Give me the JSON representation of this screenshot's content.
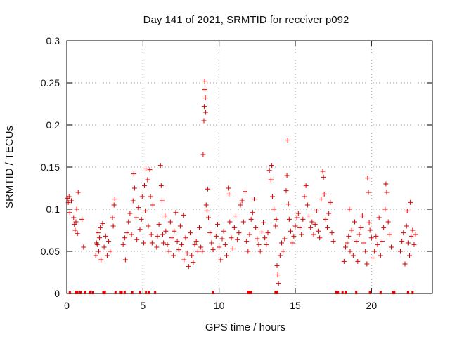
{
  "chart_data": {
    "type": "scatter",
    "title": "Day 141 of 2021, SRMTID for receiver p092",
    "xlabel": "GPS time / hours",
    "ylabel": "SRMTID / TECUs",
    "xlim": [
      0,
      24
    ],
    "ylim": [
      0,
      0.3
    ],
    "grid": true,
    "marker": "+",
    "color": "#e00000",
    "x_ticks": [
      0,
      5,
      10,
      15,
      20
    ],
    "x_tick_labels": [
      "0",
      "5",
      "10",
      "15",
      "20"
    ],
    "y_ticks": [
      0,
      0.05,
      0.1,
      0.15,
      0.2,
      0.25,
      0.3
    ],
    "y_tick_labels": [
      "0",
      "0.05",
      "0.1",
      "0.15",
      "0.2",
      "0.25",
      "0.3"
    ],
    "points": [
      [
        0.05,
        0.113
      ],
      [
        0.1,
        0.108
      ],
      [
        0.15,
        0.115
      ],
      [
        0.2,
        0.096
      ],
      [
        0.3,
        0.11
      ],
      [
        0.45,
        0.09
      ],
      [
        0.5,
        0.082
      ],
      [
        0.55,
        0.075
      ],
      [
        0.6,
        0.085
      ],
      [
        0.65,
        0.1
      ],
      [
        0.7,
        0.071
      ],
      [
        0.75,
        0.12
      ],
      [
        1.0,
        0.088
      ],
      [
        1.1,
        0.055
      ],
      [
        1.9,
        0.045
      ],
      [
        1.95,
        0.06
      ],
      [
        2.0,
        0.058
      ],
      [
        2.05,
        0.072
      ],
      [
        2.1,
        0.05
      ],
      [
        2.15,
        0.066
      ],
      [
        2.2,
        0.078
      ],
      [
        2.25,
        0.04
      ],
      [
        2.35,
        0.083
      ],
      [
        2.45,
        0.055
      ],
      [
        2.55,
        0.068
      ],
      [
        2.65,
        0.045
      ],
      [
        2.75,
        0.062
      ],
      [
        2.85,
        0.05
      ],
      [
        3.0,
        0.09
      ],
      [
        3.05,
        0.08
      ],
      [
        3.1,
        0.105
      ],
      [
        3.15,
        0.112
      ],
      [
        3.7,
        0.058
      ],
      [
        3.8,
        0.066
      ],
      [
        3.85,
        0.04
      ],
      [
        3.95,
        0.072
      ],
      [
        4.05,
        0.085
      ],
      [
        4.15,
        0.095
      ],
      [
        4.25,
        0.07
      ],
      [
        4.35,
        0.11
      ],
      [
        4.4,
        0.142
      ],
      [
        4.45,
        0.125
      ],
      [
        4.55,
        0.09
      ],
      [
        4.6,
        0.064
      ],
      [
        4.7,
        0.102
      ],
      [
        4.8,
        0.076
      ],
      [
        4.9,
        0.088
      ],
      [
        4.95,
        0.115
      ],
      [
        5.05,
        0.06
      ],
      [
        5.1,
        0.128
      ],
      [
        5.15,
        0.098
      ],
      [
        5.2,
        0.148
      ],
      [
        5.3,
        0.135
      ],
      [
        5.35,
        0.08
      ],
      [
        5.45,
        0.147
      ],
      [
        5.5,
        0.115
      ],
      [
        5.55,
        0.07
      ],
      [
        5.6,
        0.06
      ],
      [
        5.65,
        0.105
      ],
      [
        5.9,
        0.055
      ],
      [
        5.95,
        0.068
      ],
      [
        6.05,
        0.082
      ],
      [
        6.15,
        0.152
      ],
      [
        6.2,
        0.128
      ],
      [
        6.25,
        0.11
      ],
      [
        6.3,
        0.07
      ],
      [
        6.35,
        0.06
      ],
      [
        6.45,
        0.092
      ],
      [
        6.5,
        0.074
      ],
      [
        6.6,
        0.058
      ],
      [
        6.7,
        0.05
      ],
      [
        6.8,
        0.085
      ],
      [
        6.9,
        0.066
      ],
      [
        7.0,
        0.045
      ],
      [
        7.05,
        0.074
      ],
      [
        7.15,
        0.096
      ],
      [
        7.25,
        0.062
      ],
      [
        7.35,
        0.052
      ],
      [
        7.45,
        0.08
      ],
      [
        7.55,
        0.058
      ],
      [
        7.65,
        0.093
      ],
      [
        7.7,
        0.04
      ],
      [
        7.8,
        0.066
      ],
      [
        7.9,
        0.048
      ],
      [
        8.0,
        0.032
      ],
      [
        8.1,
        0.072
      ],
      [
        8.2,
        0.045
      ],
      [
        8.3,
        0.037
      ],
      [
        8.4,
        0.058
      ],
      [
        8.5,
        0.062
      ],
      [
        8.6,
        0.05
      ],
      [
        8.7,
        0.078
      ],
      [
        8.8,
        0.055
      ],
      [
        8.9,
        0.05
      ],
      [
        8.95,
        0.165
      ],
      [
        9.0,
        0.205
      ],
      [
        9.02,
        0.222
      ],
      [
        9.05,
        0.252
      ],
      [
        9.07,
        0.242
      ],
      [
        9.1,
        0.232
      ],
      [
        9.12,
        0.215
      ],
      [
        9.15,
        0.105
      ],
      [
        9.2,
        0.098
      ],
      [
        9.25,
        0.124
      ],
      [
        9.3,
        0.09
      ],
      [
        9.4,
        0.072
      ],
      [
        9.5,
        0.06
      ],
      [
        9.6,
        0.052
      ],
      [
        9.8,
        0.068
      ],
      [
        9.9,
        0.082
      ],
      [
        10.0,
        0.055
      ],
      [
        10.1,
        0.04
      ],
      [
        10.2,
        0.065
      ],
      [
        10.3,
        0.074
      ],
      [
        10.4,
        0.058
      ],
      [
        10.5,
        0.045
      ],
      [
        10.6,
        0.125
      ],
      [
        10.65,
        0.118
      ],
      [
        10.7,
        0.085
      ],
      [
        10.8,
        0.066
      ],
      [
        10.9,
        0.053
      ],
      [
        11.0,
        0.078
      ],
      [
        11.1,
        0.092
      ],
      [
        11.2,
        0.064
      ],
      [
        11.3,
        0.072
      ],
      [
        11.4,
        0.105
      ],
      [
        11.5,
        0.11
      ],
      [
        11.6,
        0.085
      ],
      [
        11.7,
        0.121
      ],
      [
        11.8,
        0.062
      ],
      [
        11.9,
        0.05
      ],
      [
        12.0,
        0.07
      ],
      [
        12.1,
        0.088
      ],
      [
        12.2,
        0.096
      ],
      [
        12.3,
        0.112
      ],
      [
        12.4,
        0.078
      ],
      [
        12.5,
        0.065
      ],
      [
        12.6,
        0.058
      ],
      [
        12.7,
        0.05
      ],
      [
        12.8,
        0.073
      ],
      [
        12.9,
        0.084
      ],
      [
        13.0,
        0.066
      ],
      [
        13.1,
        0.058
      ],
      [
        13.2,
        0.072
      ],
      [
        13.3,
        0.146
      ],
      [
        13.4,
        0.135
      ],
      [
        13.45,
        0.152
      ],
      [
        13.5,
        0.115
      ],
      [
        13.6,
        0.1
      ],
      [
        13.7,
        0.08
      ],
      [
        13.75,
        0.088
      ],
      [
        13.8,
        0.033
      ],
      [
        13.85,
        0.022
      ],
      [
        13.9,
        0.012
      ],
      [
        14.0,
        0.045
      ],
      [
        14.1,
        0.06
      ],
      [
        14.2,
        0.05
      ],
      [
        14.3,
        0.065
      ],
      [
        14.4,
        0.122
      ],
      [
        14.45,
        0.14
      ],
      [
        14.5,
        0.182
      ],
      [
        14.55,
        0.106
      ],
      [
        14.6,
        0.088
      ],
      [
        14.7,
        0.074
      ],
      [
        14.8,
        0.06
      ],
      [
        14.9,
        0.068
      ],
      [
        15.0,
        0.08
      ],
      [
        15.1,
        0.09
      ],
      [
        15.2,
        0.095
      ],
      [
        15.3,
        0.078
      ],
      [
        15.4,
        0.07
      ],
      [
        15.5,
        0.088
      ],
      [
        15.6,
        0.115
      ],
      [
        15.7,
        0.128
      ],
      [
        15.8,
        0.105
      ],
      [
        15.9,
        0.092
      ],
      [
        16.0,
        0.078
      ],
      [
        16.1,
        0.085
      ],
      [
        16.2,
        0.07
      ],
      [
        16.3,
        0.082
      ],
      [
        16.4,
        0.098
      ],
      [
        16.5,
        0.074
      ],
      [
        16.6,
        0.066
      ],
      [
        16.7,
        0.112
      ],
      [
        16.8,
        0.145
      ],
      [
        16.85,
        0.138
      ],
      [
        16.9,
        0.118
      ],
      [
        17.0,
        0.088
      ],
      [
        17.1,
        0.078
      ],
      [
        17.2,
        0.095
      ],
      [
        17.3,
        0.108
      ],
      [
        17.4,
        0.072
      ],
      [
        17.5,
        0.062
      ],
      [
        18.2,
        0.038
      ],
      [
        18.3,
        0.055
      ],
      [
        18.4,
        0.06
      ],
      [
        18.5,
        0.068
      ],
      [
        18.55,
        0.1
      ],
      [
        18.6,
        0.05
      ],
      [
        18.7,
        0.075
      ],
      [
        18.8,
        0.045
      ],
      [
        18.9,
        0.085
      ],
      [
        19.0,
        0.062
      ],
      [
        19.1,
        0.038
      ],
      [
        19.2,
        0.07
      ],
      [
        19.3,
        0.078
      ],
      [
        19.4,
        0.092
      ],
      [
        19.5,
        0.06
      ],
      [
        19.6,
        0.05
      ],
      [
        19.7,
        0.035
      ],
      [
        19.75,
        0.137
      ],
      [
        19.8,
        0.12
      ],
      [
        19.85,
        0.084
      ],
      [
        19.9,
        0.075
      ],
      [
        20.0,
        0.066
      ],
      [
        20.1,
        0.042
      ],
      [
        20.2,
        0.05
      ],
      [
        20.3,
        0.068
      ],
      [
        20.4,
        0.058
      ],
      [
        20.5,
        0.09
      ],
      [
        20.6,
        0.045
      ],
      [
        20.7,
        0.062
      ],
      [
        20.8,
        0.078
      ],
      [
        20.9,
        0.1
      ],
      [
        20.95,
        0.13
      ],
      [
        21.0,
        0.12
      ],
      [
        21.1,
        0.085
      ],
      [
        21.2,
        0.07
      ],
      [
        21.3,
        0.055
      ],
      [
        21.9,
        0.05
      ],
      [
        22.0,
        0.062
      ],
      [
        22.1,
        0.072
      ],
      [
        22.2,
        0.035
      ],
      [
        22.3,
        0.08
      ],
      [
        22.35,
        0.098
      ],
      [
        22.4,
        0.06
      ],
      [
        22.5,
        0.045
      ],
      [
        22.55,
        0.108
      ],
      [
        22.6,
        0.068
      ],
      [
        22.7,
        0.075
      ],
      [
        22.8,
        0.058
      ],
      [
        22.9,
        0.07
      ]
    ],
    "gap_markers_x": [
      0.2,
      0.6,
      0.7,
      0.9,
      1.2,
      1.5,
      1.7,
      2.4,
      2.5,
      3.2,
      3.5,
      3.6,
      3.8,
      4.3,
      4.8,
      5.2,
      5.4,
      5.8,
      9.6,
      11.9,
      12.0,
      12.1,
      13.7,
      13.8,
      17.7,
      17.8,
      18.1,
      18.3,
      19.0,
      19.9,
      20.6,
      21.4,
      21.5,
      22.4,
      22.7
    ]
  }
}
